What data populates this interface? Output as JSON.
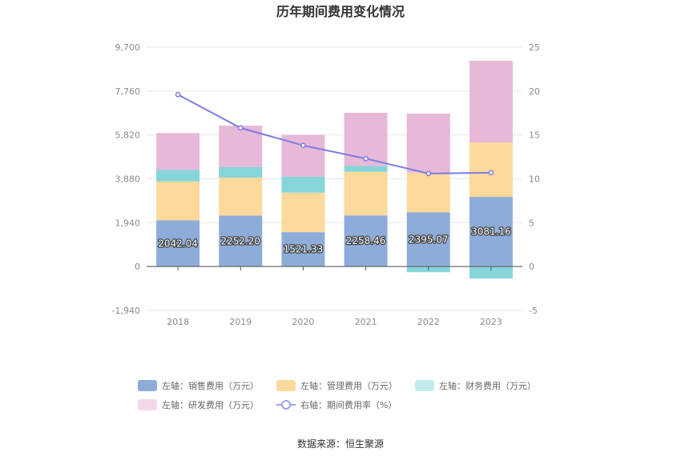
{
  "title": "历年期间费用变化情况",
  "source": "数据来源：恒生聚源",
  "chart_data": {
    "type": "bar",
    "stacked": true,
    "categories": [
      "2018",
      "2019",
      "2020",
      "2021",
      "2022",
      "2023"
    ],
    "series": [
      {
        "name": "左轴：销售费用（万元）",
        "axis": "left",
        "color": "#8eacd9",
        "values": [
          2042.04,
          2252.2,
          1521.33,
          2258.46,
          2395.07,
          3081.16
        ],
        "labels": [
          "2042.04",
          "2252.20",
          "1521.33",
          "2258.46",
          "2395.07",
          "3081.16"
        ]
      },
      {
        "name": "左轴：管理费用（万元）",
        "axis": "left",
        "color": "#fdd99b",
        "values": [
          1720,
          1680,
          1750,
          1930,
          1760,
          2400
        ]
      },
      {
        "name": "左轴：财务费用（万元）",
        "axis": "left",
        "color": "#86d5d8",
        "values": [
          520,
          470,
          700,
          260,
          -250,
          -530
        ]
      },
      {
        "name": "左轴：研发费用（万元）",
        "axis": "left",
        "color": "#e7b8d8",
        "values": [
          1620,
          1830,
          1850,
          2350,
          2610,
          3620
        ]
      },
      {
        "name": "右轴：期间费用率（%）",
        "axis": "right",
        "type": "line",
        "color": "#7b7ce3",
        "values": [
          19.6,
          15.8,
          13.8,
          12.3,
          10.6,
          10.7
        ]
      }
    ],
    "left_axis": {
      "min": -1940,
      "max": 9700,
      "ticks": [
        "-1,940",
        "0",
        "1,940",
        "3,880",
        "5,820",
        "7,760",
        "9,700"
      ]
    },
    "right_axis": {
      "min": -5,
      "max": 25,
      "ticks": [
        "-5",
        "0",
        "5",
        "10",
        "15",
        "20",
        "25"
      ]
    },
    "grid": true,
    "legend_position": "bottom"
  },
  "legend_colors": {
    "销售费用": "#8eacd9",
    "管理费用": "#fdd99b",
    "财务费用": "#c2ecee",
    "研发费用": "#f4d8ea",
    "期间费用率": "#9fa0f0"
  }
}
